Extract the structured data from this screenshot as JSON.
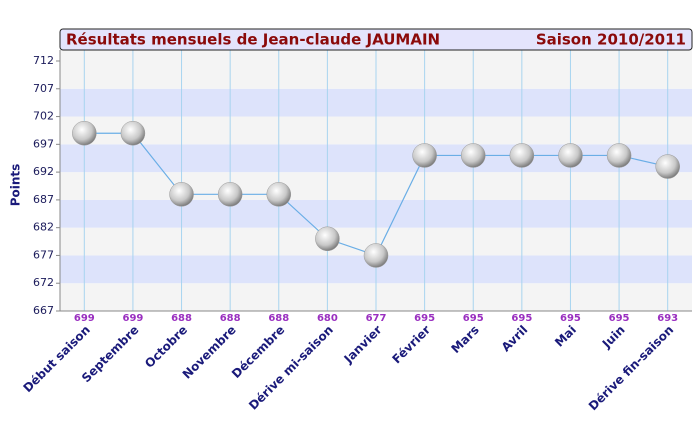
{
  "chart_data": {
    "type": "line",
    "title": "Résultats mensuels de  Jean-claude  JAUMAIN",
    "subtitle": "Saison 2010/2011",
    "y_label": "Points",
    "categories": [
      "Début saison",
      "Septembre",
      "Octobre",
      "Novembre",
      "Décembre",
      "Dérive mi-saison",
      "Janvier",
      "Février",
      "Mars",
      "Avril",
      "Mai",
      "Juin",
      "Dérive fin-saison"
    ],
    "values": [
      699,
      699,
      688,
      688,
      688,
      680,
      677,
      695,
      695,
      695,
      695,
      695,
      693
    ],
    "color": "#6aaee6",
    "ylim": [
      667,
      712
    ],
    "yticks": [
      667,
      672,
      677,
      682,
      687,
      692,
      697,
      702,
      707,
      712
    ],
    "grid": true
  }
}
